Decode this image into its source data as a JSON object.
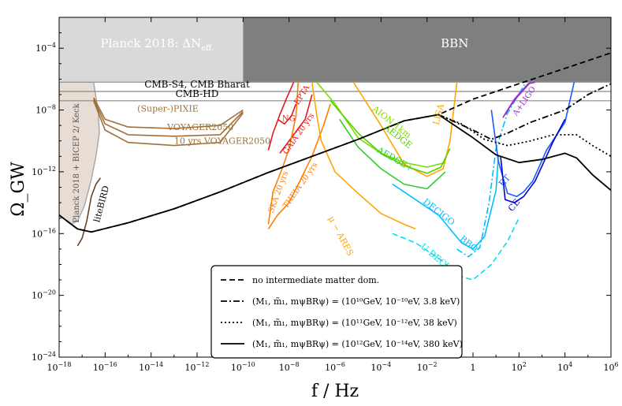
{
  "chart_data": {
    "type": "line",
    "title": "",
    "xlabel": "f / Hz",
    "ylabel": "Ω_GW",
    "x_scale": "log",
    "y_scale": "log",
    "xlim_exp": [
      -18,
      6
    ],
    "ylim_exp": [
      -24,
      -2
    ],
    "grid": false,
    "legend_position": "lower-center",
    "x_tick_labels": [
      "10^-18",
      "10^-16",
      "10^-14",
      "10^-12",
      "10^-10",
      "10^-8",
      "10^-6",
      "10^-4",
      "10^-2",
      "1",
      "10^2",
      "10^4",
      "10^6"
    ],
    "y_tick_labels": [
      "10^-24",
      "10^-20",
      "10^-16",
      "10^-12",
      "10^-8",
      "10^-4"
    ],
    "bounds": [
      {
        "name": "Planck 2018: ΔN_eff.",
        "label_main": "Planck 2018: ΔN",
        "label_sub": "eff.",
        "x_range": [
          -18,
          -10
        ],
        "y_range": [
          -6.2,
          -2
        ],
        "color": "#d9d9d9"
      },
      {
        "name": "BBN",
        "label_main": "BBN",
        "x_range": [
          -10,
          6
        ],
        "y_range": [
          -6.2,
          -2
        ],
        "color": "#7f7f7f"
      },
      {
        "name": "CMB-S4, CMB Bharat",
        "y": -6.8,
        "color": "#888888"
      },
      {
        "name": "CMB-HD",
        "y": -7.4,
        "color": "#888888"
      },
      {
        "name": "Planck 2018 + BICEP 2/ Keck",
        "color": "#e8ddd5"
      }
    ],
    "series": [
      {
        "name": "no intermediate matter dom.",
        "style": "dashed",
        "color": "#000000",
        "points": [
          [
            -18,
            -14.8
          ],
          [
            -17.2,
            -15.7
          ],
          [
            -16.6,
            -15.9
          ],
          [
            -15,
            -15.3
          ],
          [
            -13,
            -14.4
          ],
          [
            -11,
            -13.3
          ],
          [
            -9,
            -12.1
          ],
          [
            -7,
            -11.0
          ],
          [
            -5,
            -9.9
          ],
          [
            -3,
            -8.7
          ],
          [
            -1.5,
            -8.3
          ],
          [
            0,
            -7.3
          ],
          [
            2,
            -6.3
          ],
          [
            4,
            -5.3
          ],
          [
            6,
            -4.3
          ]
        ]
      },
      {
        "name": "(M_1, m̃_1, m_ψ BR_ψ) = (10^10 GeV, 10^-10 eV, 3.8 keV)",
        "style": "dashdot",
        "color": "#000000",
        "points": [
          [
            -1.5,
            -8.3
          ],
          [
            0,
            -9.3
          ],
          [
            0.8,
            -9.9
          ],
          [
            1.5,
            -9.5
          ],
          [
            2.5,
            -8.8
          ],
          [
            4,
            -8.0
          ],
          [
            5,
            -7.0
          ],
          [
            6,
            -6.3
          ]
        ]
      },
      {
        "name": "(M_1, m̃_1, m_ψ BR_ψ) = (10^11 GeV, 10^-12 eV, 38 keV)",
        "style": "dotted",
        "color": "#000000",
        "points": [
          [
            -1.5,
            -8.3
          ],
          [
            -0.5,
            -8.9
          ],
          [
            0.5,
            -9.9
          ],
          [
            1.5,
            -10.3
          ],
          [
            2.5,
            -10.0
          ],
          [
            3.5,
            -9.6
          ],
          [
            4.5,
            -9.6
          ],
          [
            5.2,
            -10.3
          ],
          [
            6,
            -11.0
          ]
        ]
      },
      {
        "name": "(M_1, m̃_1, m_ψ BR_ψ) = (10^12 GeV, 10^-14 eV, 380 keV)",
        "style": "solid",
        "color": "#000000",
        "points": [
          [
            -18,
            -14.8
          ],
          [
            -17.2,
            -15.7
          ],
          [
            -16.6,
            -15.9
          ],
          [
            -15,
            -15.3
          ],
          [
            -13,
            -14.4
          ],
          [
            -11,
            -13.3
          ],
          [
            -9,
            -12.1
          ],
          [
            -7,
            -11.0
          ],
          [
            -5,
            -9.9
          ],
          [
            -3,
            -8.7
          ],
          [
            -1.5,
            -8.3
          ],
          [
            0,
            -9.8
          ],
          [
            1,
            -10.9
          ],
          [
            2,
            -11.4
          ],
          [
            3,
            -11.2
          ],
          [
            4,
            -10.8
          ],
          [
            4.5,
            -11.1
          ],
          [
            5.2,
            -12.2
          ],
          [
            6,
            -13.2
          ]
        ]
      }
    ],
    "experiments": [
      {
        "name": "liteBIRD",
        "color": "#6b4226",
        "points": [
          [
            -17.2,
            -16.8
          ],
          [
            -17,
            -16.3
          ],
          [
            -16.8,
            -15.2
          ],
          [
            -16.6,
            -13.6
          ],
          [
            -16.4,
            -12.8
          ],
          [
            -16.2,
            -12.4
          ]
        ]
      },
      {
        "name": "(Super-)PIXIE",
        "color": "#a0703a",
        "points": [
          [
            -16.5,
            -7.2
          ],
          [
            -16,
            -8.6
          ],
          [
            -15,
            -9.1
          ],
          [
            -13,
            -9.2
          ],
          [
            -11,
            -9.0
          ],
          [
            -10,
            -8.0
          ]
        ]
      },
      {
        "name": "VOYAGER2050",
        "color": "#a0703a",
        "points": [
          [
            -16.5,
            -7.3
          ],
          [
            -16,
            -8.9
          ],
          [
            -15,
            -9.6
          ],
          [
            -13,
            -9.7
          ],
          [
            -11,
            -9.6
          ],
          [
            -10,
            -8.1
          ]
        ]
      },
      {
        "name": "10 yrs VOYAGER2050",
        "color": "#a0703a",
        "points": [
          [
            -16.5,
            -7.4
          ],
          [
            -16,
            -9.3
          ],
          [
            -15,
            -10.1
          ],
          [
            -13,
            -10.3
          ],
          [
            -11,
            -10.1
          ],
          [
            -10,
            -8.2
          ]
        ]
      },
      {
        "name": "EPTA",
        "color": "#e41a1c",
        "points": [
          [
            -8.9,
            -10.6
          ],
          [
            -8.7,
            -9.5
          ],
          [
            -8.4,
            -8.3
          ],
          [
            -8.1,
            -7.2
          ],
          [
            -7.8,
            -6.2
          ]
        ]
      },
      {
        "name": "NANOGrav",
        "label": "NG",
        "color": "#e41a1c",
        "points": [
          [
            -8.5,
            -8.6
          ],
          [
            -8.2,
            -8.9
          ],
          [
            -7.9,
            -8.4
          ],
          [
            -7.7,
            -7.6
          ]
        ]
      },
      {
        "name": "GAIA 20 yrs",
        "color": "#e41a1c",
        "points": [
          [
            -8.4,
            -10.8
          ],
          [
            -8.2,
            -10.4
          ],
          [
            -7.8,
            -9.6
          ],
          [
            -7.3,
            -8.6
          ],
          [
            -7.0,
            -7.0
          ]
        ]
      },
      {
        "name": "SKA 20 yrs",
        "color": "#ff7f00",
        "points": [
          [
            -8.9,
            -15.4
          ],
          [
            -8.7,
            -13.3
          ],
          [
            -8.3,
            -11.8
          ],
          [
            -8.0,
            -10.5
          ],
          [
            -7.7,
            -8.4
          ],
          [
            -7.6,
            -6.2
          ]
        ]
      },
      {
        "name": "THEIA 20 yrs",
        "color": "#ff7f00",
        "points": [
          [
            -8.9,
            -15.7
          ],
          [
            -8.5,
            -14.8
          ],
          [
            -8.0,
            -14.0
          ],
          [
            -7.5,
            -12.5
          ],
          [
            -7.0,
            -11.0
          ],
          [
            -6.5,
            -9.0
          ],
          [
            -6.2,
            -7.6
          ]
        ]
      },
      {
        "name": "μ − ARES",
        "color": "#ffa500",
        "points": [
          [
            -7.0,
            -6.2
          ],
          [
            -6.8,
            -8.3
          ],
          [
            -6.6,
            -10.0
          ],
          [
            -6.0,
            -12.0
          ],
          [
            -5,
            -13.4
          ],
          [
            -4,
            -14.7
          ],
          [
            -3,
            -15.4
          ],
          [
            -2.5,
            -15.7
          ]
        ]
      },
      {
        "name": "LISA",
        "color": "#ffa500",
        "points": [
          [
            -5.2,
            -6.2
          ],
          [
            -4,
            -9.0
          ],
          [
            -3,
            -11.5
          ],
          [
            -2,
            -12.3
          ],
          [
            -1.3,
            -11.8
          ],
          [
            -1,
            -10.0
          ],
          [
            -0.7,
            -6.2
          ]
        ]
      },
      {
        "name": "AION 1km",
        "color": "#7fdc00",
        "points": [
          [
            -6.8,
            -6.2
          ],
          [
            -6,
            -7.6
          ],
          [
            -5,
            -9.8
          ],
          [
            -4,
            -10.8
          ],
          [
            -3,
            -11.4
          ],
          [
            -2,
            -11.7
          ],
          [
            -1.2,
            -11.4
          ]
        ]
      },
      {
        "name": "AEDGE",
        "color": "#5ad000",
        "points": [
          [
            -6.2,
            -7.4
          ],
          [
            -5,
            -9.5
          ],
          [
            -4,
            -10.8
          ],
          [
            -3,
            -11.6
          ],
          [
            -2,
            -12.1
          ],
          [
            -1.4,
            -11.7
          ],
          [
            -1.0,
            -10.5
          ]
        ]
      },
      {
        "name": "AEDGE+",
        "color": "#33cc33",
        "points": [
          [
            -5.8,
            -8.6
          ],
          [
            -5,
            -10.4
          ],
          [
            -4,
            -11.8
          ],
          [
            -3,
            -12.8
          ],
          [
            -2,
            -13.1
          ],
          [
            -1.2,
            -12.0
          ]
        ]
      },
      {
        "name": "DECIGO",
        "color": "#00bfff",
        "points": [
          [
            -3.5,
            -12.8
          ],
          [
            -2.5,
            -13.8
          ],
          [
            -1.5,
            -14.8
          ],
          [
            -0.5,
            -16.6
          ],
          [
            0,
            -17.0
          ],
          [
            0.5,
            -16.2
          ],
          [
            1,
            -13.2
          ],
          [
            1.1,
            -11.0
          ]
        ]
      },
      {
        "name": "BBO",
        "color": "#00bfff",
        "style": "dashdot",
        "points": [
          [
            -0.7,
            -17.0
          ],
          [
            -0.2,
            -17.5
          ],
          [
            0.3,
            -16.9
          ],
          [
            0.7,
            -14.0
          ],
          [
            1.0,
            -10.5
          ],
          [
            1.5,
            -8.2
          ],
          [
            2.3,
            -6.2
          ]
        ]
      },
      {
        "name": "U-DECIGO",
        "color": "#00e0ee",
        "style": "dashed",
        "points": [
          [
            -3.5,
            -16.0
          ],
          [
            -2.5,
            -16.6
          ],
          [
            -1.5,
            -17.6
          ],
          [
            -0.5,
            -18.8
          ],
          [
            0,
            -19.0
          ],
          [
            0.8,
            -18.0
          ],
          [
            1.5,
            -16.5
          ],
          [
            2,
            -15.0
          ]
        ]
      },
      {
        "name": "ET",
        "color": "#1e5aff",
        "points": [
          [
            0.8,
            -8.0
          ],
          [
            1.1,
            -11.3
          ],
          [
            1.5,
            -13.4
          ],
          [
            1.9,
            -13.6
          ],
          [
            2.2,
            -13.3
          ],
          [
            2.6,
            -12.6
          ],
          [
            3.2,
            -10.6
          ],
          [
            4,
            -8.8
          ],
          [
            4.4,
            -6.2
          ]
        ]
      },
      {
        "name": "CE",
        "color": "#0000cd",
        "points": [
          [
            1.2,
            -11.0
          ],
          [
            1.4,
            -13.8
          ],
          [
            1.8,
            -14.0
          ],
          [
            2.2,
            -13.6
          ],
          [
            2.7,
            -12.6
          ],
          [
            3.5,
            -10.0
          ],
          [
            4,
            -8.6
          ]
        ]
      },
      {
        "name": "aLIGO",
        "color": "#9932cc",
        "points": [
          [
            1.3,
            -8.5
          ],
          [
            1.5,
            -8.0
          ],
          [
            1.8,
            -7.3
          ],
          [
            2.1,
            -6.8
          ],
          [
            2.4,
            -6.3
          ],
          [
            2.7,
            -6.2
          ]
        ]
      },
      {
        "name": "A+LIGO",
        "color": "#9932cc",
        "points": [
          [
            1.4,
            -8.3
          ],
          [
            1.6,
            -7.8
          ],
          [
            1.9,
            -7.2
          ],
          [
            2.2,
            -6.7
          ],
          [
            2.5,
            -6.2
          ]
        ]
      }
    ],
    "legend": [
      {
        "style": "dashed",
        "label": "no intermediate matter dom."
      },
      {
        "style": "dashdot",
        "label": "(M₁, m̃₁, mψBRψ) = (10¹⁰GeV, 10⁻¹⁰eV, 3.8 keV)"
      },
      {
        "style": "dotted",
        "label": "(M₁, m̃₁, mψBRψ) = (10¹¹GeV, 10⁻¹²eV, 38 keV)"
      },
      {
        "style": "solid",
        "label": "(M₁, m̃₁, mψBRψ) = (10¹²GeV, 10⁻¹⁴eV, 380 keV)"
      }
    ]
  }
}
